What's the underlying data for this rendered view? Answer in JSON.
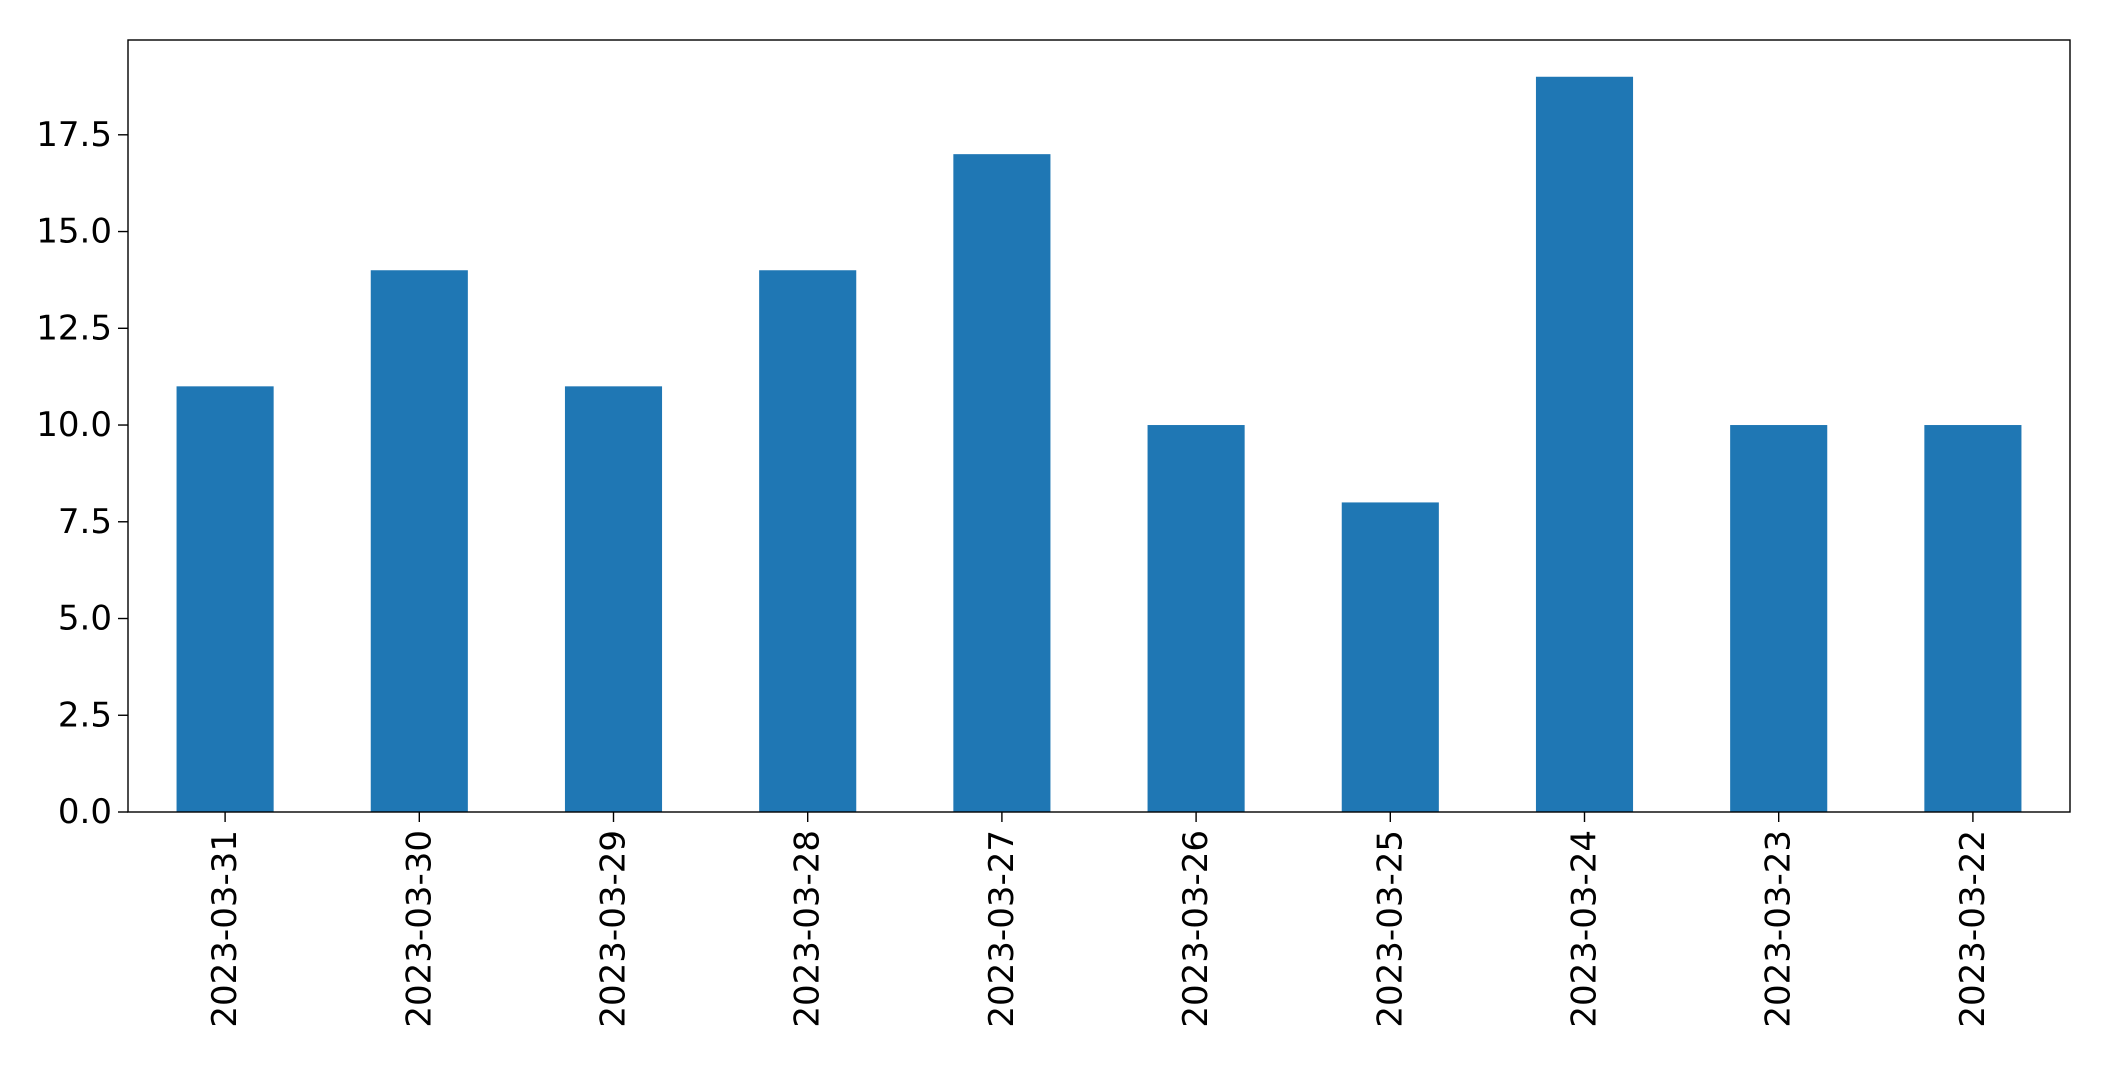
{
  "chart_data": {
    "type": "bar",
    "title": "",
    "xlabel": "",
    "ylabel": "",
    "categories": [
      "2023-03-31",
      "2023-03-30",
      "2023-03-29",
      "2023-03-28",
      "2023-03-27",
      "2023-03-26",
      "2023-03-25",
      "2023-03-24",
      "2023-03-23",
      "2023-03-22"
    ],
    "values": [
      11,
      14,
      11,
      14,
      17,
      10,
      8,
      19,
      10,
      10
    ],
    "ylim": [
      0,
      20
    ],
    "yticks": [
      0,
      2.5,
      5,
      7.5,
      10,
      12.5,
      15,
      17.5
    ],
    "ytick_labels": [
      "0.0",
      "2.5",
      "5.0",
      "7.5",
      "10.0",
      "12.5",
      "15.0",
      "17.5"
    ],
    "grid": false,
    "legend": "none",
    "bar_color": "#1f77b4",
    "axis_color": "#000000"
  }
}
